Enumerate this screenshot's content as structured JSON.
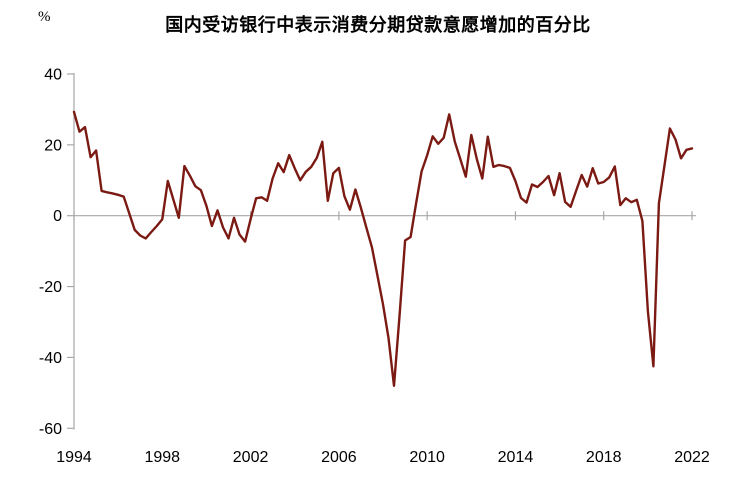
{
  "chart_data": {
    "type": "line",
    "title": "国内受访银行中表示消费分期贷款意愿增加的百分比",
    "unit_label": "%",
    "x_tick_labels": [
      "1994",
      "1998",
      "2002",
      "2006",
      "2010",
      "2014",
      "2018",
      "2022"
    ],
    "y_tick_labels": [
      "40",
      "20",
      "0",
      "-20",
      "-40",
      "-60"
    ],
    "y_ticks": [
      40,
      20,
      0,
      -20,
      -40,
      -60
    ],
    "ylim": [
      -60,
      40
    ],
    "x_start": "1994Q1",
    "x_end": "2022Q1",
    "frequency": "quarterly",
    "quarters_per_x_tick": 16,
    "grid": "zero-axis-only",
    "legend_position": "none",
    "line_color": "#7b1a13",
    "axis_color": "#a8a8a8",
    "text_color": "#000000",
    "series": [
      {
        "name": "国内受访银行中表示消费分期贷款意愿增加的百分比",
        "values": [
          29.3,
          23.7,
          25.0,
          16.5,
          18.4,
          7.0,
          6.6,
          6.3,
          5.9,
          5.4,
          0.7,
          -4.0,
          -5.6,
          -6.4,
          -4.6,
          -2.9,
          -1.0,
          9.8,
          4.6,
          -0.6,
          14.0,
          11.3,
          8.3,
          7.2,
          2.8,
          -2.9,
          1.5,
          -3.3,
          -6.4,
          -0.6,
          -5.3,
          -7.3,
          -1.0,
          4.9,
          5.2,
          4.2,
          10.5,
          14.8,
          12.3,
          17.1,
          13.4,
          10.0,
          12.4,
          13.8,
          16.3,
          20.9,
          4.2,
          12.0,
          13.5,
          5.5,
          1.7,
          7.4,
          2.2,
          -3.5,
          -9.0,
          -17.0,
          -25.0,
          -34.5,
          -48.0,
          -28.0,
          -7.0,
          -6.0,
          3.5,
          12.5,
          17.1,
          22.4,
          20.3,
          22.0,
          28.6,
          21.0,
          16.0,
          11.0,
          22.8,
          16.0,
          10.5,
          22.3,
          13.8,
          14.3,
          14.0,
          13.5,
          9.8,
          5.0,
          3.7,
          8.8,
          8.1,
          9.5,
          11.2,
          5.8,
          12.0,
          3.9,
          2.5,
          7.0,
          11.5,
          8.2,
          13.4,
          9.1,
          9.5,
          10.8,
          13.9,
          3.0,
          4.9,
          3.8,
          4.5,
          -1.5,
          -27.0,
          -42.5,
          3.5,
          14.0,
          24.6,
          21.5,
          16.2,
          18.6,
          19.0
        ]
      }
    ]
  }
}
